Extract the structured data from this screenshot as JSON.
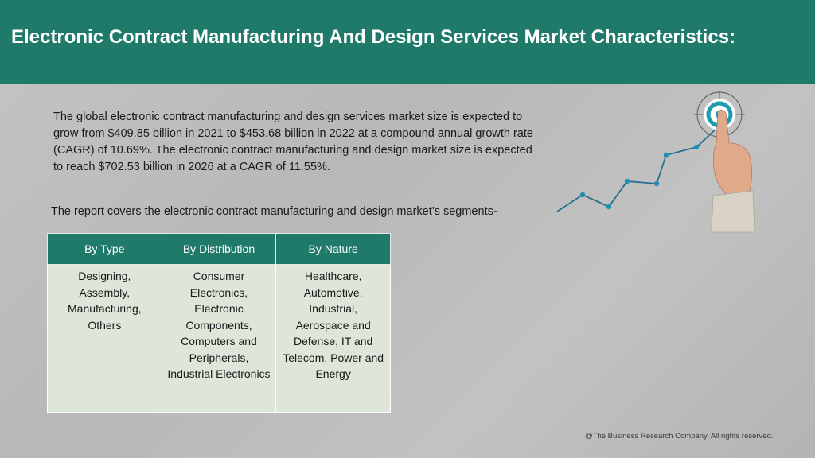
{
  "header": {
    "title": "Electronic Contract Manufacturing And Design Services Market Characteristics:"
  },
  "body": {
    "paragraph": "The global electronic contract manufacturing and design services market size is expected to grow from $409.85 billion in 2021 to $453.68 billion in 2022 at a compound annual growth rate (CAGR) of 10.69%. The electronic contract manufacturing and design market size is expected to reach $702.53 billion in 2026 at a CAGR of 11.55%.",
    "segments_intro": "The report covers the electronic contract manufacturing and design market’s segments-"
  },
  "segments_table": {
    "headers": [
      "By Type",
      "By Distribution",
      "By Nature"
    ],
    "cells": [
      "Designing, Assembly, Manufacturing, Others",
      "Consumer Electronics, Electronic Components, Computers and Peripherals, Industrial Electronics",
      "Healthcare, Automotive, Industrial, Aerospace and Defense, IT and Telecom, Power and Energy"
    ]
  },
  "illustration": {
    "icon": "growth-chart-target-icon"
  },
  "footer": {
    "copyright": "@The Business Research Company. All rights reserved."
  },
  "colors": {
    "header_bg": "#1f7a6a",
    "table_cell_bg": "#dde6d8",
    "accent": "#1f9bb0"
  }
}
